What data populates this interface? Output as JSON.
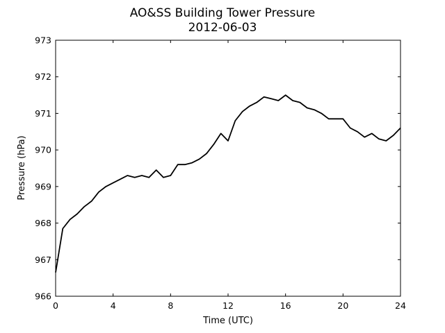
{
  "chart_data": {
    "type": "line",
    "title": "AO&SS Building Tower Pressure",
    "subtitle": "2012-06-03",
    "xlabel": "Time (UTC)",
    "ylabel": "Pressure (hPa)",
    "xlim": [
      0,
      24
    ],
    "ylim": [
      966,
      973
    ],
    "xticks": [
      0,
      4,
      8,
      12,
      16,
      20,
      24
    ],
    "yticks": [
      966,
      967,
      968,
      969,
      970,
      971,
      972,
      973
    ],
    "grid": false,
    "series": [
      {
        "color": "#000000",
        "x": [
          0,
          0.5,
          1,
          1.5,
          2,
          2.5,
          3,
          3.5,
          4,
          4.5,
          5,
          5.5,
          6,
          6.5,
          7,
          7.5,
          8,
          8.5,
          9,
          9.5,
          10,
          10.5,
          11,
          11.5,
          12,
          12.5,
          13,
          13.5,
          14,
          14.5,
          15,
          15.5,
          16,
          16.5,
          17,
          17.5,
          18,
          18.5,
          19,
          19.5,
          20,
          20.5,
          21,
          21.5,
          22,
          22.5,
          23,
          23.5,
          24
        ],
        "y": [
          966.65,
          967.85,
          968.1,
          968.25,
          968.45,
          968.6,
          968.85,
          969.0,
          969.1,
          969.2,
          969.3,
          969.25,
          969.3,
          969.25,
          969.45,
          969.25,
          969.3,
          969.6,
          969.6,
          969.65,
          969.75,
          969.9,
          970.15,
          970.45,
          970.25,
          970.8,
          971.05,
          971.2,
          971.3,
          971.45,
          971.4,
          971.35,
          971.5,
          971.35,
          971.3,
          971.15,
          971.1,
          971.0,
          970.85,
          970.85,
          970.85,
          970.6,
          970.5,
          970.35,
          970.45,
          970.3,
          970.25,
          970.4,
          970.6
        ]
      }
    ]
  }
}
